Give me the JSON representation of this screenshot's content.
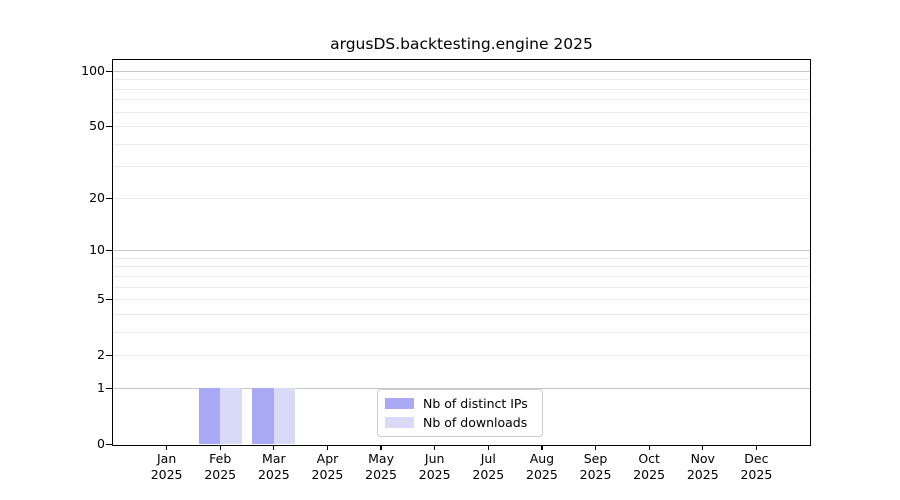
{
  "chart_data": {
    "type": "bar",
    "title": "argusDS.backtesting.engine 2025",
    "year_label": "2025",
    "categories": [
      "Jan",
      "Feb",
      "Mar",
      "Apr",
      "May",
      "Jun",
      "Jul",
      "Aug",
      "Sep",
      "Oct",
      "Nov",
      "Dec"
    ],
    "series": [
      {
        "name": "Nb of distinct IPs",
        "color": "#a9a9f5",
        "values": [
          0,
          1,
          1,
          0,
          0,
          0,
          0,
          0,
          0,
          0,
          0,
          0
        ]
      },
      {
        "name": "Nb of downloads",
        "color": "#d9d9f8",
        "values": [
          0,
          1,
          1,
          0,
          0,
          0,
          0,
          0,
          0,
          0,
          0,
          0
        ]
      }
    ],
    "xlabel": "",
    "ylabel": "",
    "y_scale": "log1p",
    "y_ticks": [
      0,
      1,
      2,
      5,
      10,
      20,
      50,
      100
    ],
    "y_minor_gridlines": [
      2,
      3,
      4,
      5,
      6,
      7,
      8,
      9,
      20,
      30,
      40,
      50,
      60,
      70,
      80,
      90
    ],
    "y_major_gridlines": [
      1,
      10,
      100
    ],
    "ylim": [
      0,
      115
    ],
    "grid": "horizontal",
    "legend_position": "lower center",
    "colors": {
      "major_grid": "#c6c6c6",
      "minor_grid": "#ebebeb",
      "axis": "#000000",
      "background": "#ffffff"
    }
  }
}
